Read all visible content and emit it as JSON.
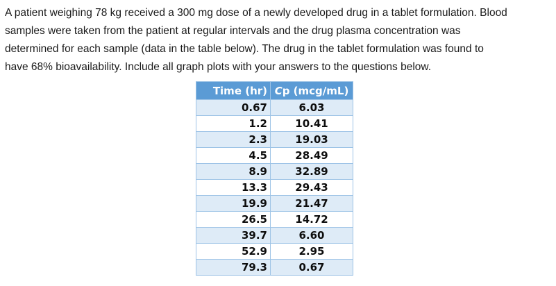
{
  "document": {
    "paragraph_lines": [
      "A patient weighing 78 kg received a 300 mg dose of a newly developed drug in a tablet formulation. Blood",
      "samples were taken from the patient at regular intervals and the drug plasma concentration was",
      "determined for each sample (data in the table below). The drug in the tablet formulation was found to",
      "have 68% bioavailability. Include all graph plots with your answers to the questions below."
    ]
  },
  "table": {
    "headers": {
      "time": "Time (hr)",
      "cp_italic": "C",
      "cp_rest": "p (mcg/mL)"
    },
    "rows": [
      {
        "time": "0.67",
        "cp": "6.03"
      },
      {
        "time": "1.2",
        "cp": "10.41"
      },
      {
        "time": "2.3",
        "cp": "19.03"
      },
      {
        "time": "4.5",
        "cp": "28.49"
      },
      {
        "time": "8.9",
        "cp": "32.89"
      },
      {
        "time": "13.3",
        "cp": "29.43"
      },
      {
        "time": "19.9",
        "cp": "21.47"
      },
      {
        "time": "26.5",
        "cp": "14.72"
      },
      {
        "time": "39.7",
        "cp": "6.60"
      },
      {
        "time": "52.9",
        "cp": "2.95"
      },
      {
        "time": "79.3",
        "cp": "0.67"
      }
    ]
  },
  "colors": {
    "header_bg": "#5b9bd5",
    "header_text": "#ffffff",
    "row_alt_bg": "#deebf7",
    "border": "#9dc3e6"
  }
}
